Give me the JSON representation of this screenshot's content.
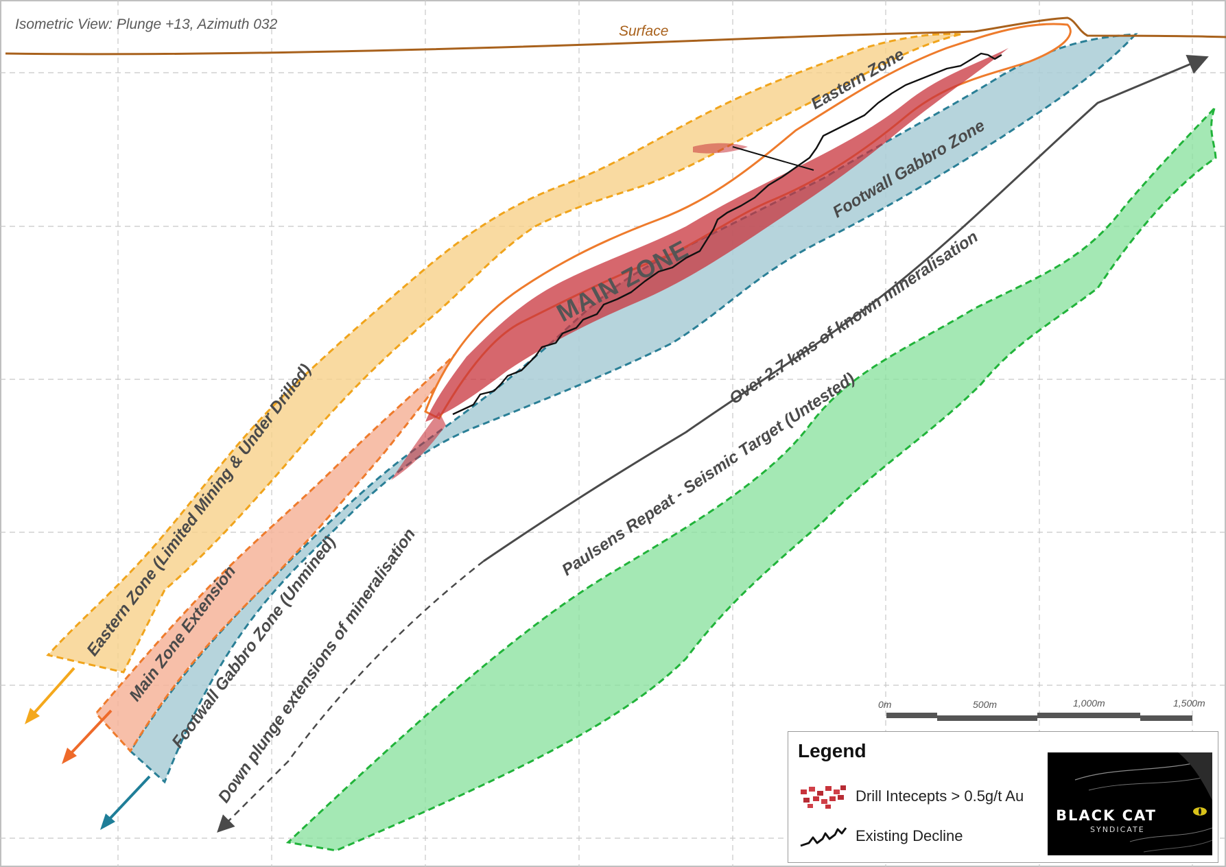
{
  "view_title": "Isometric View: Plunge +13, Azimuth 032",
  "surface_label": "Surface",
  "zone_labels": {
    "eastern_zone": "Eastern Zone",
    "main_zone": "MAIN ZONE",
    "footwall_gabbro_zone": "Footwall Gabbro Zone",
    "eastern_zone_extension": "Eastern Zone (Limited Mining & Under Drilled)",
    "main_zone_extension": "Main Zone Extension",
    "footwall_extension": "Footwall Gabbro Zone (Unmined)",
    "paulsens_repeat": "Paulsens Repeat - Seismic Target (Untested)"
  },
  "annotations": {
    "known_mineralisation": "Over 2.7 kms of known mineralisation",
    "down_plunge": "Down plunge extensions of mineralisation"
  },
  "scale_bar": {
    "labels": [
      "0m",
      "500m",
      "1,000m",
      "1,500m"
    ]
  },
  "legend": {
    "title": "Legend",
    "items": [
      {
        "label": "Drill Intecepts > 0.5g/t Au",
        "symbol": "drill-intercepts-swatch"
      },
      {
        "label": "Existing Decline",
        "symbol": "decline-zigzag"
      }
    ]
  },
  "logo": {
    "line1": "BLACK CAT",
    "line2": "SYNDICATE"
  },
  "colors": {
    "eastern_zone": "#f7d18a",
    "eastern_zone_border": "#f0a41c",
    "main_zone_extension": "#f6b49a",
    "main_zone_border": "#ee7b2c",
    "footwall": "#a9ccd6",
    "footwall_border": "#2a7f96",
    "paulsens": "#86e09b",
    "paulsens_border": "#21b33a",
    "drill_intercepts": "#c8343c",
    "surface_line": "#a8611c",
    "arrow_yellow": "#f4a81c",
    "arrow_orange": "#ee6a2a",
    "arrow_teal": "#1f7e98",
    "annotation_line": "#4a4a4a"
  }
}
